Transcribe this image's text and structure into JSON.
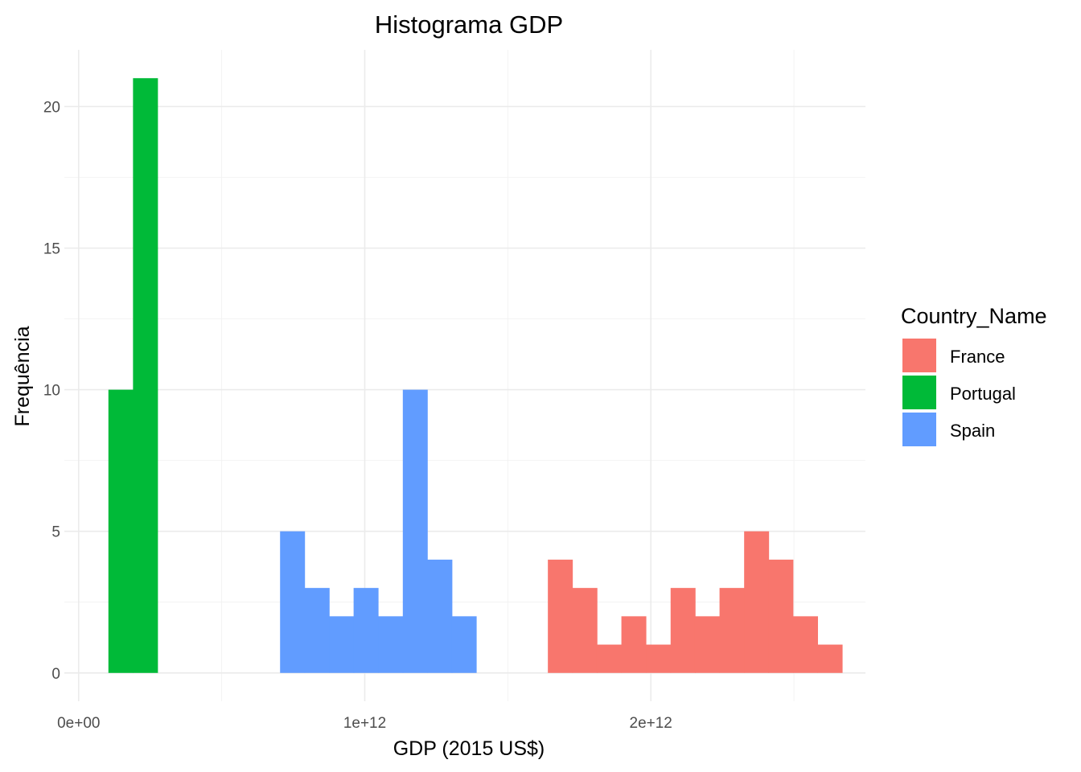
{
  "chart_data": {
    "type": "bar",
    "subtype": "histogram",
    "title": "Histograma GDP",
    "xlabel": "GDP (2015 US$)",
    "ylabel": "Frequência",
    "xlim": [
      -50000000000.0,
      2750000000000.0
    ],
    "ylim": [
      -1.0,
      22.0
    ],
    "x_ticks": [
      0,
      1000000000000.0,
      2000000000000.0
    ],
    "x_tick_labels": [
      "0e+00",
      "1e+12",
      "2e+12"
    ],
    "y_ticks": [
      0,
      5,
      10,
      15,
      20
    ],
    "y_tick_labels": [
      "0",
      "5",
      "10",
      "15",
      "20"
    ],
    "grid": true,
    "bin_width": 85700000000.0,
    "legend": {
      "title": "Country_Name",
      "placement": "right",
      "entries": [
        {
          "label": "France",
          "color": "#F8766D"
        },
        {
          "label": "Portugal",
          "color": "#00BA38"
        },
        {
          "label": "Spain",
          "color": "#619CFF"
        }
      ]
    },
    "series": [
      {
        "name": "France",
        "color": "#F8766D",
        "bins": [
          {
            "x0": 1640000000000.0,
            "count": 4
          },
          {
            "x0": 1726000000000.0,
            "count": 3
          },
          {
            "x0": 1811000000000.0,
            "count": 1
          },
          {
            "x0": 1897000000000.0,
            "count": 2
          },
          {
            "x0": 1983000000000.0,
            "count": 1
          },
          {
            "x0": 2069000000000.0,
            "count": 3
          },
          {
            "x0": 2154000000000.0,
            "count": 2
          },
          {
            "x0": 2240000000000.0,
            "count": 3
          },
          {
            "x0": 2326000000000.0,
            "count": 5
          },
          {
            "x0": 2411000000000.0,
            "count": 4
          },
          {
            "x0": 2497000000000.0,
            "count": 2
          },
          {
            "x0": 2583000000000.0,
            "count": 1
          }
        ]
      },
      {
        "name": "Portugal",
        "color": "#00BA38",
        "bins": [
          {
            "x0": 104000000000.0,
            "count": 10
          },
          {
            "x0": 190000000000.0,
            "count": 21
          }
        ]
      },
      {
        "name": "Spain",
        "color": "#619CFF",
        "bins": [
          {
            "x0": 704000000000.0,
            "count": 5
          },
          {
            "x0": 790000000000.0,
            "count": 3
          },
          {
            "x0": 876000000000.0,
            "count": 2
          },
          {
            "x0": 961000000000.0,
            "count": 3
          },
          {
            "x0": 1047000000000.0,
            "count": 2
          },
          {
            "x0": 1133000000000.0,
            "count": 10
          },
          {
            "x0": 1219000000000.0,
            "count": 4
          },
          {
            "x0": 1304000000000.0,
            "count": 2
          }
        ]
      }
    ]
  }
}
